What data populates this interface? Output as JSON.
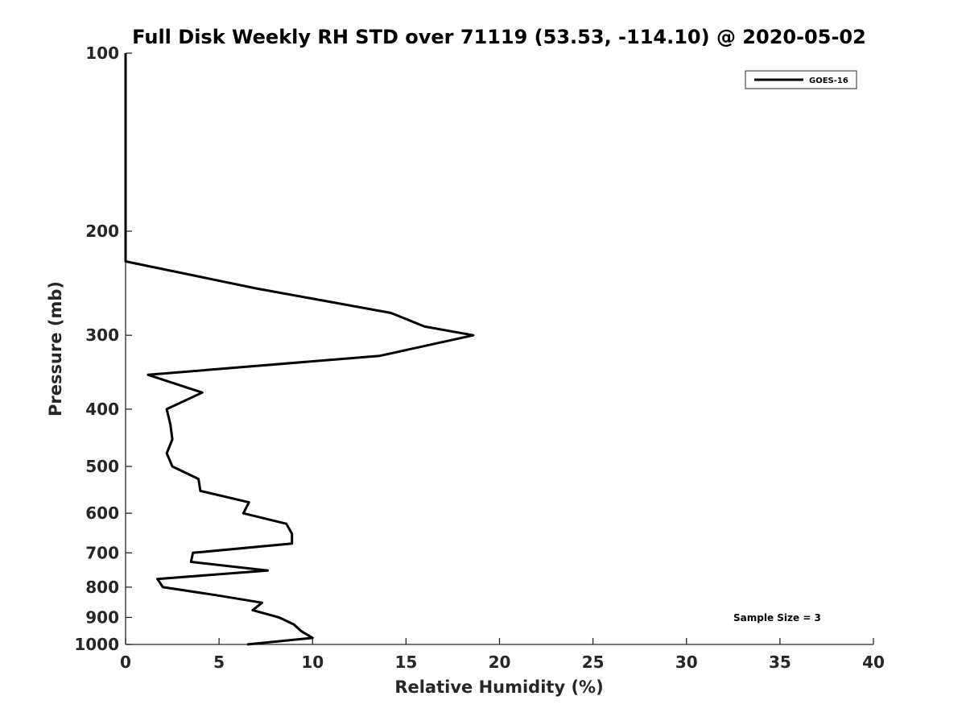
{
  "chart_data": {
    "type": "line",
    "title": "Full Disk Weekly RH STD over 71119 (53.53, -114.10) @ 2020-05-02",
    "xlabel": "Relative Humidity (%)",
    "ylabel": "Pressure (mb)",
    "xlim": [
      0,
      40
    ],
    "ylim": [
      100,
      1000
    ],
    "y_scale": "log",
    "y_reversed": true,
    "x_ticks": [
      "0",
      "5",
      "10",
      "15",
      "20",
      "25",
      "30",
      "35",
      "40"
    ],
    "y_ticks": [
      "100",
      "200",
      "300",
      "400",
      "500",
      "600",
      "700",
      "800",
      "900",
      "1000"
    ],
    "legend": {
      "position": "top-right",
      "entries": [
        "GOES-16"
      ]
    },
    "annotation": "Sample Size = 3",
    "grid": false,
    "series": [
      {
        "name": "GOES-16",
        "color": "#000000",
        "points": [
          [
            0,
            100
          ],
          [
            0,
            150
          ],
          [
            0,
            200
          ],
          [
            0,
            225
          ],
          [
            7,
            250
          ],
          [
            14.2,
            275
          ],
          [
            16,
            290
          ],
          [
            18.6,
            300
          ],
          [
            13.6,
            325
          ],
          [
            1.2,
            350
          ],
          [
            4.1,
            375
          ],
          [
            2.2,
            400
          ],
          [
            2.4,
            425
          ],
          [
            2.5,
            450
          ],
          [
            2.2,
            475
          ],
          [
            2.5,
            500
          ],
          [
            3.9,
            525
          ],
          [
            4.0,
            550
          ],
          [
            6.6,
            575
          ],
          [
            6.3,
            600
          ],
          [
            8.6,
            625
          ],
          [
            8.9,
            650
          ],
          [
            8.9,
            675
          ],
          [
            3.6,
            700
          ],
          [
            3.5,
            725
          ],
          [
            7.6,
            750
          ],
          [
            1.7,
            775
          ],
          [
            2.0,
            800
          ],
          [
            4.8,
            825
          ],
          [
            7.3,
            850
          ],
          [
            6.8,
            875
          ],
          [
            8.2,
            900
          ],
          [
            9.0,
            925
          ],
          [
            9.4,
            950
          ],
          [
            10.0,
            975
          ],
          [
            6.5,
            1000
          ]
        ]
      }
    ]
  }
}
